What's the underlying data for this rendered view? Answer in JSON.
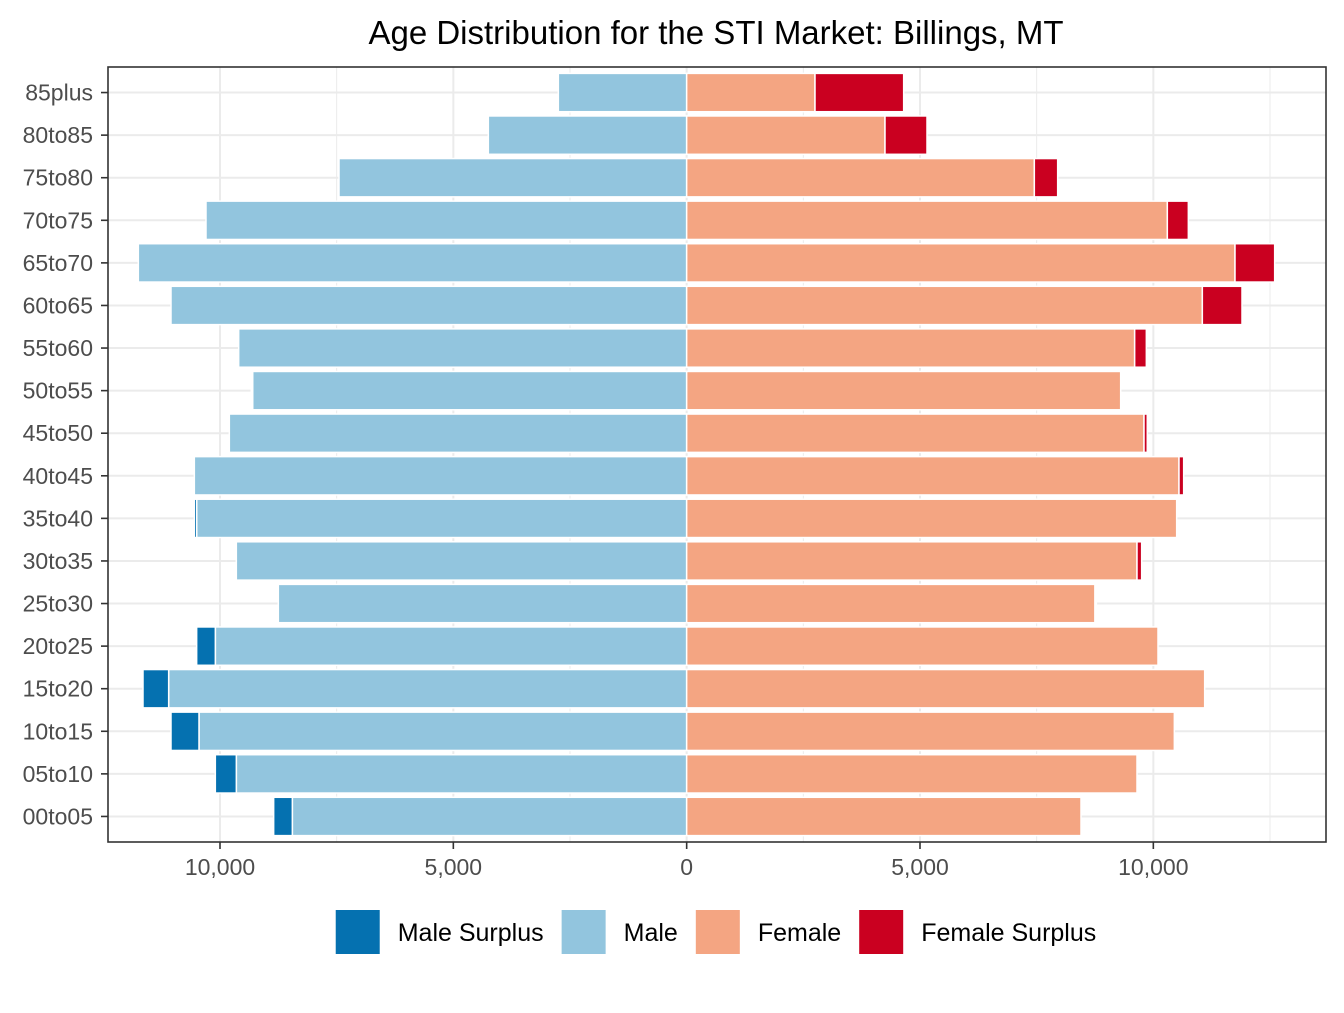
{
  "chart_data": {
    "type": "bar",
    "orientation": "horizontal",
    "title": "Age Distribution for the STI Market: Billings, MT",
    "xlabel": "",
    "ylabel": "",
    "xlim": [
      -12400,
      13700
    ],
    "x_ticks": [
      -10000,
      -5000,
      0,
      5000,
      10000
    ],
    "x_tick_labels": [
      "10,000",
      "5,000",
      "0",
      "5,000",
      "10,000"
    ],
    "categories": [
      "00to05",
      "05to10",
      "10to15",
      "15to20",
      "20to25",
      "25to30",
      "30to35",
      "35to40",
      "40to45",
      "45to50",
      "50to55",
      "55to60",
      "60to65",
      "65to70",
      "70to75",
      "75to80",
      "80to85",
      "85plus"
    ],
    "series": [
      {
        "name": "Male",
        "side": "left",
        "values": [
          8450,
          9650,
          10450,
          11100,
          10100,
          8750,
          9650,
          10500,
          10550,
          9800,
          9300,
          9600,
          11050,
          11750,
          10300,
          7450,
          4250,
          2750
        ]
      },
      {
        "name": "Male Surplus",
        "side": "left",
        "values": [
          400,
          450,
          600,
          550,
          400,
          0,
          0,
          50,
          0,
          0,
          30,
          0,
          0,
          0,
          0,
          0,
          0,
          0
        ]
      },
      {
        "name": "Female",
        "side": "right",
        "values": [
          8450,
          9650,
          10450,
          11100,
          10100,
          8750,
          9650,
          10500,
          10550,
          9800,
          9300,
          9600,
          11050,
          11750,
          10300,
          7450,
          4250,
          2750
        ]
      },
      {
        "name": "Female Surplus",
        "side": "right",
        "values": [
          0,
          0,
          0,
          0,
          0,
          30,
          100,
          0,
          100,
          70,
          0,
          250,
          850,
          850,
          450,
          500,
          900,
          1900
        ]
      }
    ],
    "legend": {
      "position": "bottom",
      "entries": [
        {
          "label": "Male Surplus",
          "color": "#0571b0"
        },
        {
          "label": "Male",
          "color": "#92c5de"
        },
        {
          "label": "Female",
          "color": "#f4a582"
        },
        {
          "label": "Female Surplus",
          "color": "#ca0020"
        }
      ]
    },
    "colors": {
      "male": "#92c5de",
      "male_surplus": "#0571b0",
      "female": "#f4a582",
      "female_surplus": "#ca0020",
      "grid": "#ebebeb",
      "panel_border": "#333333",
      "tick_text": "#4d4d4d"
    },
    "grid": true
  }
}
